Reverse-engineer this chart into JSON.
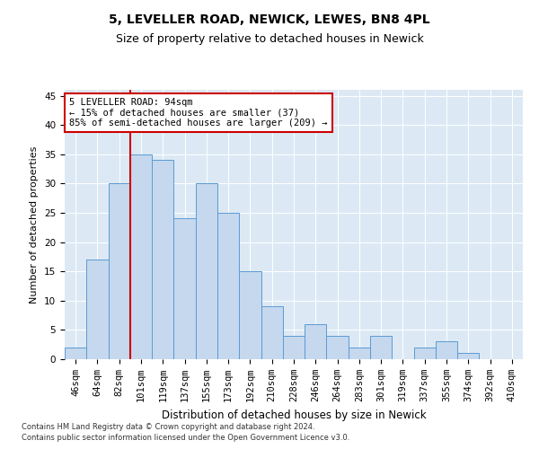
{
  "title": "5, LEVELLER ROAD, NEWICK, LEWES, BN8 4PL",
  "subtitle": "Size of property relative to detached houses in Newick",
  "xlabel": "Distribution of detached houses by size in Newick",
  "ylabel": "Number of detached properties",
  "categories": [
    "46sqm",
    "64sqm",
    "82sqm",
    "101sqm",
    "119sqm",
    "137sqm",
    "155sqm",
    "173sqm",
    "192sqm",
    "210sqm",
    "228sqm",
    "246sqm",
    "264sqm",
    "283sqm",
    "301sqm",
    "319sqm",
    "337sqm",
    "355sqm",
    "374sqm",
    "392sqm",
    "410sqm"
  ],
  "values": [
    2,
    17,
    30,
    35,
    34,
    24,
    30,
    25,
    15,
    9,
    4,
    6,
    4,
    2,
    4,
    0,
    2,
    3,
    1,
    0,
    0
  ],
  "bar_color": "#c5d8ed",
  "bar_edge_color": "#5b9bd5",
  "vline_color": "#cc0000",
  "vline_pos": 2.5,
  "annotation_line1": "5 LEVELLER ROAD: 94sqm",
  "annotation_line2": "← 15% of detached houses are smaller (37)",
  "annotation_line3": "85% of semi-detached houses are larger (209) →",
  "annotation_box_color": "#ffffff",
  "annotation_box_edgecolor": "#cc0000",
  "ylim": [
    0,
    46
  ],
  "yticks": [
    0,
    5,
    10,
    15,
    20,
    25,
    30,
    35,
    40,
    45
  ],
  "background_color": "#dce9f5",
  "footer_line1": "Contains HM Land Registry data © Crown copyright and database right 2024.",
  "footer_line2": "Contains public sector information licensed under the Open Government Licence v3.0.",
  "title_fontsize": 10,
  "subtitle_fontsize": 9,
  "xlabel_fontsize": 8.5,
  "ylabel_fontsize": 8,
  "tick_fontsize": 7.5,
  "annot_fontsize": 7.5,
  "footer_fontsize": 6
}
